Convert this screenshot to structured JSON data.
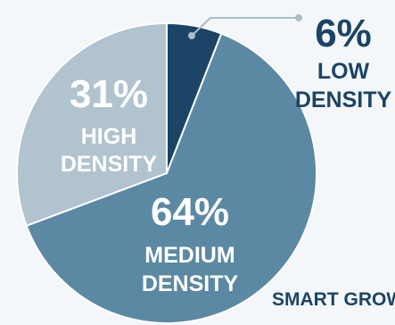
{
  "chart_data": {
    "type": "pie",
    "title": "",
    "slices": [
      {
        "label_lines": [
          "LOW",
          "DENSITY"
        ],
        "value": 6,
        "pct_text": "6%",
        "color": "#1b4466"
      },
      {
        "label_lines": [
          "MEDIUM",
          "DENSITY"
        ],
        "value": 64,
        "pct_text": "64%",
        "color": "#5b89a3"
      },
      {
        "label_lines": [
          "HIGH",
          "DENSITY"
        ],
        "value": 31,
        "pct_text": "31%",
        "color": "#b0c3cf"
      }
    ],
    "colors": {
      "outer_text": "#1b4466",
      "leader_line": "#a9bdca",
      "background": "#f4f7f9"
    }
  },
  "footer": {
    "label": "SMART GROWTH"
  }
}
